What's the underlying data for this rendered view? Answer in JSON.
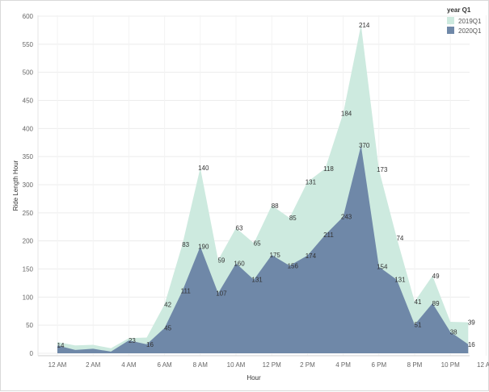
{
  "chart_data": {
    "type": "area",
    "xlabel": "Hour",
    "ylabel": "Ride Length Hour",
    "ylim": [
      0,
      600
    ],
    "yticks": [
      0,
      50,
      100,
      150,
      200,
      250,
      300,
      350,
      400,
      450,
      500,
      550,
      600
    ],
    "x": [
      "12 AM",
      "1 AM",
      "2 AM",
      "3 AM",
      "4 AM",
      "5 AM",
      "6 AM",
      "7 AM",
      "8 AM",
      "9 AM",
      "10 AM",
      "11 AM",
      "12 PM",
      "1 PM",
      "2 PM",
      "3 PM",
      "4 PM",
      "5 PM",
      "6 PM",
      "7 PM",
      "8 PM",
      "9 PM",
      "10 PM",
      "11 PM"
    ],
    "xtick_labels": [
      "12 AM",
      "2 AM",
      "4 AM",
      "6 AM",
      "8 AM",
      "10 AM",
      "12 PM",
      "2 PM",
      "4 PM",
      "6 PM",
      "8 PM",
      "10 PM",
      "12 AM"
    ],
    "stacked": true,
    "grid": true,
    "legend": {
      "title": "year Q1",
      "position": "top-right"
    },
    "series": [
      {
        "name": "2019Q1",
        "color": "#cdeadf",
        "values": [
          6,
          8,
          7,
          6,
          4,
          12,
          42,
          83,
          140,
          59,
          63,
          65,
          88,
          85,
          131,
          118,
          184,
          214,
          173,
          74,
          41,
          49,
          18,
          39
        ],
        "labels": [
          null,
          null,
          null,
          null,
          null,
          null,
          "42",
          "83",
          "140",
          "59",
          "63",
          "65",
          "88",
          "85",
          "131",
          "118",
          "184",
          "214",
          "173",
          "74",
          "41",
          "49",
          null,
          "39"
        ]
      },
      {
        "name": "2020Q1",
        "color": "#6f88a8",
        "values": [
          14,
          6,
          8,
          3,
          23,
          16,
          45,
          111,
          190,
          107,
          160,
          131,
          175,
          156,
          174,
          211,
          243,
          370,
          154,
          131,
          51,
          89,
          38,
          16
        ],
        "labels": [
          "14",
          null,
          null,
          null,
          "23",
          "16",
          "45",
          "111",
          "190",
          "107",
          "160",
          "131",
          "175",
          "156",
          "174",
          "211",
          "243",
          "370",
          "154",
          "131",
          "51",
          "89",
          "38",
          "16"
        ]
      }
    ]
  }
}
